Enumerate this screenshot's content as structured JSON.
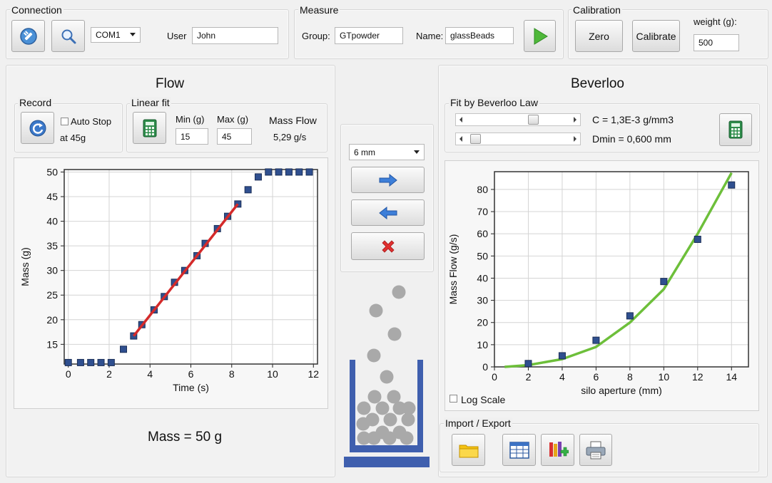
{
  "connection": {
    "title": "Connection",
    "port": "COM1",
    "user_label": "User",
    "user_value": "John"
  },
  "measure": {
    "title": "Measure",
    "group_label": "Group:",
    "group_value": "GTpowder",
    "name_label": "Name:",
    "name_value": "glassBeads"
  },
  "calibration": {
    "title": "Calibration",
    "zero_label": "Zero",
    "calibrate_label": "Calibrate",
    "weight_label": "weight (g):",
    "weight_value": "500"
  },
  "flow": {
    "title": "Flow",
    "record_title": "Record",
    "auto_stop_label": "Auto Stop",
    "at_label": "at 45g",
    "linear_fit_title": "Linear fit",
    "min_label": "Min (g)",
    "min_value": "15",
    "max_label": "Max (g)",
    "max_value": "45",
    "mass_flow_label": "Mass Flow",
    "mass_flow_value": "5,29 g/s",
    "mass_readout": "Mass = 50 g"
  },
  "center": {
    "aperture_value": "6 mm"
  },
  "beverloo": {
    "title": "Beverloo",
    "fit_title": "Fit by Beverloo Law",
    "c_label": "C = 1,3E-3 g/mm3",
    "dmin_label": "Dmin = 0,600 mm",
    "slider_c": 0.72,
    "slider_dmin": 0.1,
    "log_scale_label": "Log Scale"
  },
  "import_export": {
    "title": "Import / Export"
  },
  "colors": {
    "marker": "#2f4f8f",
    "fit_red": "#d42a2a",
    "fit_green": "#6dbf3a",
    "funnel_blue": "#3f5fae",
    "bead_gray": "#a9a9a9"
  },
  "chart_data": [
    {
      "type": "scatter",
      "xlabel": "Time (s)",
      "ylabel": "Mass (g)",
      "xlim": [
        -0.2,
        12.2
      ],
      "ylim": [
        11,
        50.5
      ],
      "xticks": [
        0,
        2,
        4,
        6,
        8,
        10,
        12
      ],
      "yticks": [
        15,
        20,
        25,
        30,
        35,
        40,
        45,
        50
      ],
      "grid": true,
      "points": {
        "x": [
          0,
          0.6,
          1.1,
          1.6,
          2.1,
          2.7,
          3.2,
          3.6,
          4.2,
          4.7,
          5.2,
          5.7,
          6.3,
          6.7,
          7.3,
          7.8,
          8.3,
          8.8,
          9.3,
          9.8,
          10.3,
          10.8,
          11.3,
          11.8
        ],
        "y": [
          11.3,
          11.3,
          11.3,
          11.3,
          11.3,
          14.0,
          16.7,
          19.0,
          22.0,
          24.7,
          27.6,
          30.0,
          33.0,
          35.5,
          38.5,
          41.0,
          43.5,
          46.4,
          49.0,
          50.0,
          50.0,
          50.0,
          50.0,
          50.0
        ]
      },
      "fit_line": {
        "x": [
          3.2,
          8.3
        ],
        "y": [
          16.7,
          43.5
        ]
      }
    },
    {
      "type": "scatter",
      "xlabel": "silo aperture (mm)",
      "ylabel": "Mass Flow (g/s)",
      "xlim": [
        0,
        15
      ],
      "ylim": [
        0,
        88
      ],
      "xticks": [
        0,
        2,
        4,
        6,
        8,
        10,
        12,
        14
      ],
      "yticks": [
        0,
        10,
        20,
        30,
        40,
        50,
        60,
        70,
        80
      ],
      "grid": true,
      "points": {
        "x": [
          2,
          4,
          6,
          8,
          10,
          12,
          14
        ],
        "y": [
          1.5,
          5,
          12,
          23,
          38.5,
          57.5,
          82
        ]
      },
      "fit_curve": {
        "x": [
          0.6,
          2,
          4,
          6,
          8,
          10,
          12,
          14
        ],
        "y": [
          0,
          0.8,
          3.5,
          9,
          20,
          35,
          60,
          87.5
        ]
      }
    }
  ]
}
